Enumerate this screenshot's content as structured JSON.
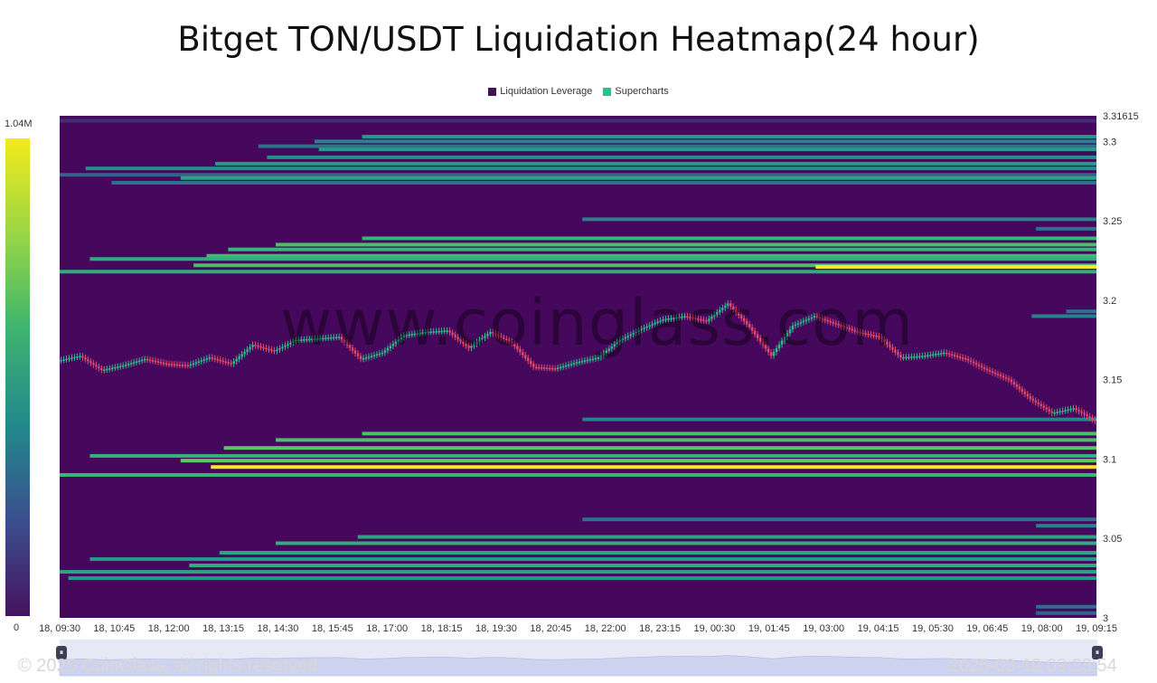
{
  "chart_data": {
    "type": "heatmap",
    "title": "Bitget TON/USDT Liquidation Heatmap(24 hour)",
    "legend": [
      {
        "label": "Liquidation Leverage",
        "color": "#3b1556"
      },
      {
        "label": "Supercharts",
        "color": "#23c58a"
      }
    ],
    "legend_position": "top-center",
    "colorscale": {
      "max_label": "1.04M",
      "min_label": "0",
      "max": 1040000,
      "min": 0
    },
    "background_color": "#46085c",
    "price_axis": {
      "min": 3.0,
      "max": 3.31615,
      "ticks": [
        "3.31615",
        "3.3",
        "3.25",
        "3.2",
        "3.15",
        "3.1",
        "3.05",
        "3"
      ]
    },
    "time_axis": {
      "labels": [
        "18, 09:30",
        "18, 10:45",
        "18, 12:00",
        "18, 13:15",
        "18, 14:30",
        "18, 15:45",
        "18, 17:00",
        "18, 18:15",
        "18, 19:30",
        "18, 20:45",
        "18, 22:00",
        "18, 23:15",
        "19, 00:30",
        "19, 01:45",
        "19, 03:00",
        "19, 04:15",
        "19, 05:30",
        "19, 06:45",
        "19, 08:00",
        "19, 09:15"
      ],
      "start_hours": 0,
      "end_hours": 24
    },
    "liquidation_bands": [
      {
        "price": 3.313,
        "start_hour": 0.0,
        "intensity": 0.1
      },
      {
        "price": 3.303,
        "start_hour": 7.0,
        "intensity": 0.45
      },
      {
        "price": 3.3,
        "start_hour": 5.9,
        "intensity": 0.35
      },
      {
        "price": 3.297,
        "start_hour": 4.6,
        "intensity": 0.3
      },
      {
        "price": 3.295,
        "start_hour": 6.0,
        "intensity": 0.45
      },
      {
        "price": 3.29,
        "start_hour": 4.8,
        "intensity": 0.4
      },
      {
        "price": 3.286,
        "start_hour": 3.6,
        "intensity": 0.45
      },
      {
        "price": 3.283,
        "start_hour": 0.6,
        "intensity": 0.4
      },
      {
        "price": 3.279,
        "start_hour": 0.0,
        "intensity": 0.25
      },
      {
        "price": 3.277,
        "start_hour": 2.8,
        "intensity": 0.5
      },
      {
        "price": 3.274,
        "start_hour": 1.2,
        "intensity": 0.3
      },
      {
        "price": 3.251,
        "start_hour": 12.1,
        "intensity": 0.35
      },
      {
        "price": 3.245,
        "start_hour": 22.6,
        "intensity": 0.3
      },
      {
        "price": 3.239,
        "start_hour": 7.0,
        "intensity": 0.6
      },
      {
        "price": 3.235,
        "start_hour": 5.0,
        "intensity": 0.65
      },
      {
        "price": 3.232,
        "start_hour": 3.9,
        "intensity": 0.6
      },
      {
        "price": 3.228,
        "start_hour": 3.4,
        "intensity": 0.62
      },
      {
        "price": 3.226,
        "start_hour": 0.7,
        "intensity": 0.55
      },
      {
        "price": 3.222,
        "start_hour": 3.1,
        "intensity": 0.65
      },
      {
        "price": 3.221,
        "start_hour": 17.5,
        "intensity": 1.0
      },
      {
        "price": 3.218,
        "start_hour": 0.0,
        "intensity": 0.55
      },
      {
        "price": 3.193,
        "start_hour": 23.3,
        "intensity": 0.3
      },
      {
        "price": 3.19,
        "start_hour": 22.5,
        "intensity": 0.35
      },
      {
        "price": 3.125,
        "start_hour": 12.1,
        "intensity": 0.35
      },
      {
        "price": 3.116,
        "start_hour": 7.0,
        "intensity": 0.65
      },
      {
        "price": 3.112,
        "start_hour": 5.0,
        "intensity": 0.65
      },
      {
        "price": 3.107,
        "start_hour": 3.8,
        "intensity": 0.68
      },
      {
        "price": 3.102,
        "start_hour": 0.7,
        "intensity": 0.58
      },
      {
        "price": 3.099,
        "start_hour": 2.8,
        "intensity": 0.7
      },
      {
        "price": 3.095,
        "start_hour": 3.5,
        "intensity": 1.0
      },
      {
        "price": 3.09,
        "start_hour": 0.0,
        "intensity": 0.6
      },
      {
        "price": 3.062,
        "start_hour": 12.1,
        "intensity": 0.3
      },
      {
        "price": 3.058,
        "start_hour": 22.6,
        "intensity": 0.35
      },
      {
        "price": 3.051,
        "start_hour": 6.9,
        "intensity": 0.5
      },
      {
        "price": 3.047,
        "start_hour": 5.0,
        "intensity": 0.55
      },
      {
        "price": 3.041,
        "start_hour": 3.7,
        "intensity": 0.5
      },
      {
        "price": 3.037,
        "start_hour": 0.7,
        "intensity": 0.45
      },
      {
        "price": 3.033,
        "start_hour": 3.0,
        "intensity": 0.55
      },
      {
        "price": 3.029,
        "start_hour": 0.0,
        "intensity": 0.5
      },
      {
        "price": 3.025,
        "start_hour": 0.2,
        "intensity": 0.45
      },
      {
        "price": 3.007,
        "start_hour": 22.6,
        "intensity": 0.3
      },
      {
        "price": 3.003,
        "start_hour": 22.6,
        "intensity": 0.25
      }
    ],
    "price_path": [
      {
        "hour": 0.0,
        "close": 3.162
      },
      {
        "hour": 0.5,
        "close": 3.165
      },
      {
        "hour": 1.0,
        "close": 3.156
      },
      {
        "hour": 1.5,
        "close": 3.159
      },
      {
        "hour": 2.0,
        "close": 3.163
      },
      {
        "hour": 2.5,
        "close": 3.16
      },
      {
        "hour": 3.0,
        "close": 3.159
      },
      {
        "hour": 3.5,
        "close": 3.164
      },
      {
        "hour": 4.0,
        "close": 3.16
      },
      {
        "hour": 4.5,
        "close": 3.172
      },
      {
        "hour": 5.0,
        "close": 3.168
      },
      {
        "hour": 5.5,
        "close": 3.175
      },
      {
        "hour": 6.0,
        "close": 3.176
      },
      {
        "hour": 6.5,
        "close": 3.177
      },
      {
        "hour": 7.0,
        "close": 3.163
      },
      {
        "hour": 7.5,
        "close": 3.167
      },
      {
        "hour": 8.0,
        "close": 3.178
      },
      {
        "hour": 8.5,
        "close": 3.18
      },
      {
        "hour": 9.0,
        "close": 3.181
      },
      {
        "hour": 9.5,
        "close": 3.17
      },
      {
        "hour": 10.0,
        "close": 3.18
      },
      {
        "hour": 10.5,
        "close": 3.173
      },
      {
        "hour": 11.0,
        "close": 3.158
      },
      {
        "hour": 11.5,
        "close": 3.157
      },
      {
        "hour": 12.0,
        "close": 3.161
      },
      {
        "hour": 12.5,
        "close": 3.164
      },
      {
        "hour": 13.0,
        "close": 3.175
      },
      {
        "hour": 13.5,
        "close": 3.182
      },
      {
        "hour": 14.0,
        "close": 3.188
      },
      {
        "hour": 14.5,
        "close": 3.19
      },
      {
        "hour": 15.0,
        "close": 3.187
      },
      {
        "hour": 15.5,
        "close": 3.198
      },
      {
        "hour": 16.0,
        "close": 3.183
      },
      {
        "hour": 16.5,
        "close": 3.165
      },
      {
        "hour": 17.0,
        "close": 3.184
      },
      {
        "hour": 17.5,
        "close": 3.19
      },
      {
        "hour": 18.0,
        "close": 3.185
      },
      {
        "hour": 18.5,
        "close": 3.18
      },
      {
        "hour": 19.0,
        "close": 3.177
      },
      {
        "hour": 19.5,
        "close": 3.164
      },
      {
        "hour": 20.0,
        "close": 3.165
      },
      {
        "hour": 20.5,
        "close": 3.167
      },
      {
        "hour": 21.0,
        "close": 3.163
      },
      {
        "hour": 21.5,
        "close": 3.156
      },
      {
        "hour": 22.0,
        "close": 3.15
      },
      {
        "hour": 22.5,
        "close": 3.138
      },
      {
        "hour": 23.0,
        "close": 3.129
      },
      {
        "hour": 23.5,
        "close": 3.132
      },
      {
        "hour": 24.0,
        "close": 3.124
      }
    ]
  },
  "footer": {
    "copyright": "© 2025 CoinGlass, all rights reserved",
    "timestamp": "2025-09-19 09:23:54"
  },
  "watermark": "www.coinglass.com"
}
